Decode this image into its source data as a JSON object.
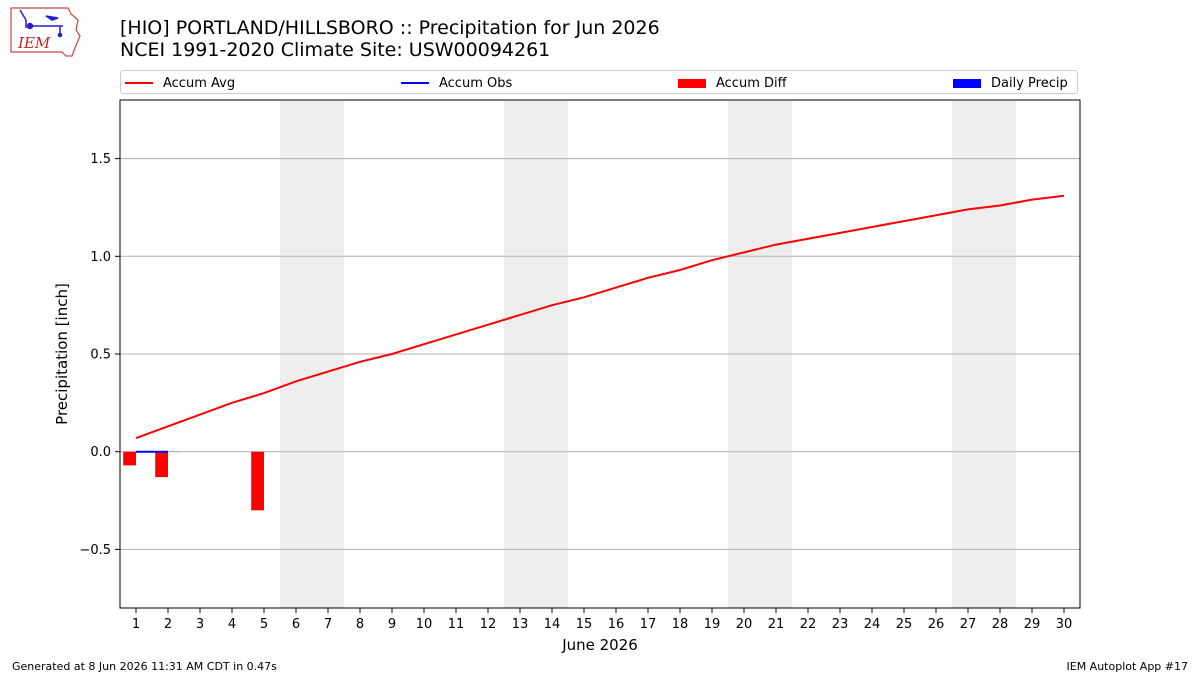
{
  "header": {
    "logo_text": "IEM",
    "title_line1": "[HIO] PORTLAND/HILLSBORO :: Precipitation for Jun 2026",
    "title_line2": "NCEI 1991-2020 Climate Site: USW00094261"
  },
  "legend": {
    "placement": "top",
    "items": [
      {
        "label": "Accum Avg",
        "kind": "line",
        "color": "#ff0000"
      },
      {
        "label": "Accum Obs",
        "kind": "line",
        "color": "#0000ff"
      },
      {
        "label": "Accum Diff",
        "kind": "bar",
        "color": "#ff0000"
      },
      {
        "label": "Daily Precip",
        "kind": "bar",
        "color": "#0000ff"
      }
    ]
  },
  "footer": {
    "left": "Generated at 8 Jun 2026 11:31 AM CDT in 0.47s",
    "right": "IEM Autoplot App #17"
  },
  "chart_data": {
    "type": "line",
    "title": "[HIO] PORTLAND/HILLSBORO :: Precipitation for Jun 2026",
    "subtitle": "NCEI 1991-2020 Climate Site: USW00094261",
    "xlabel": "June 2026",
    "ylabel": "Precipitation [inch]",
    "xlim": [
      0.5,
      30.5
    ],
    "ylim": [
      -0.8,
      1.8
    ],
    "yticks": [
      -0.5,
      0.0,
      0.5,
      1.0,
      1.5
    ],
    "ytick_labels": [
      "−0.5",
      "0.0",
      "0.5",
      "1.0",
      "1.5"
    ],
    "x": [
      1,
      2,
      3,
      4,
      5,
      6,
      7,
      8,
      9,
      10,
      11,
      12,
      13,
      14,
      15,
      16,
      17,
      18,
      19,
      20,
      21,
      22,
      23,
      24,
      25,
      26,
      27,
      28,
      29,
      30
    ],
    "grid": "horizontal",
    "weekend_shading": [
      [
        5.5,
        7.5
      ],
      [
        12.5,
        14.5
      ],
      [
        19.5,
        21.5
      ],
      [
        26.5,
        28.5
      ]
    ],
    "weekend_color": "#eeeeee",
    "series": [
      {
        "name": "Accum Avg",
        "kind": "line",
        "color": "#ff0000",
        "x": [
          1,
          2,
          3,
          4,
          5,
          6,
          7,
          8,
          9,
          10,
          11,
          12,
          13,
          14,
          15,
          16,
          17,
          18,
          19,
          20,
          21,
          22,
          23,
          24,
          25,
          26,
          27,
          28,
          29,
          30
        ],
        "values": [
          0.07,
          0.13,
          0.19,
          0.25,
          0.3,
          0.36,
          0.41,
          0.46,
          0.5,
          0.55,
          0.6,
          0.65,
          0.7,
          0.75,
          0.79,
          0.84,
          0.89,
          0.93,
          0.98,
          1.02,
          1.06,
          1.09,
          1.12,
          1.15,
          1.18,
          1.21,
          1.24,
          1.26,
          1.29,
          1.31
        ]
      },
      {
        "name": "Accum Obs",
        "kind": "line",
        "color": "#0000ff",
        "x": [
          1,
          2
        ],
        "values": [
          0.0,
          0.0
        ]
      },
      {
        "name": "Accum Diff",
        "kind": "bar",
        "color": "#ff0000",
        "x": [
          1,
          2,
          5
        ],
        "values": [
          -0.07,
          -0.13,
          -0.3
        ]
      },
      {
        "name": "Daily Precip",
        "kind": "bar",
        "color": "#0000ff",
        "x": [
          1,
          2
        ],
        "values": [
          0.0,
          0.0
        ]
      }
    ]
  }
}
